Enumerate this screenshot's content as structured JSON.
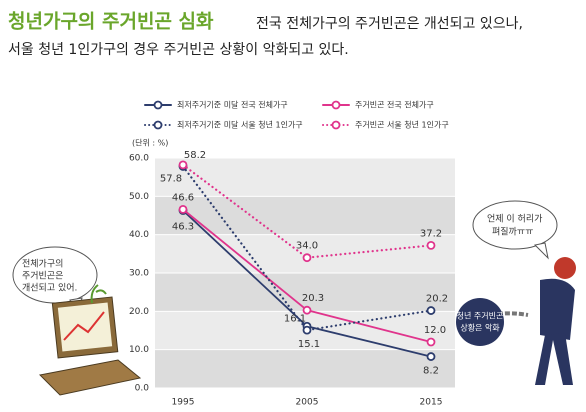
{
  "header": {
    "title": "청년가구의 주거빈곤 심화",
    "subtitle": [
      "전국 전체가구의 주거빈곤은 개선되고 있으나,",
      "서울 청년 1인가구의 경우 주거빈곤 상황이 악화되고 있다."
    ]
  },
  "chart_data": {
    "type": "line",
    "y_label": "(단위 : %)",
    "categories": [
      "1995",
      "2005",
      "2015"
    ],
    "series": [
      {
        "name": "최저주거기준 미달 전국 전체가구",
        "color": "#2d3d6d",
        "dashed": false,
        "values": [
          46.3,
          16.1,
          8.2
        ],
        "value_labels": [
          "46.3",
          "16.1",
          "8.2"
        ]
      },
      {
        "name": "주거빈곤 전국 전체가구",
        "color": "#e0348c",
        "dashed": false,
        "values": [
          46.6,
          20.3,
          12.0
        ],
        "value_labels": [
          "46.6",
          "20.3",
          "12.0"
        ]
      },
      {
        "name": "최저주거기준 미달 서울 청년 1인가구",
        "color": "#2d3d6d",
        "dashed": true,
        "values": [
          57.8,
          15.1,
          20.2
        ],
        "value_labels": [
          "57.8",
          "15.1",
          "20.2"
        ]
      },
      {
        "name": "주거빈곤 서울 청년 1인가구",
        "color": "#e0348c",
        "dashed": true,
        "values": [
          58.2,
          34.0,
          37.2
        ],
        "value_labels": [
          "58.2",
          "34.0",
          "37.2"
        ]
      }
    ],
    "ylim": [
      0,
      60
    ],
    "yticks": [
      {
        "value": 0,
        "label": "0.0"
      },
      {
        "value": 10,
        "label": "10.0"
      },
      {
        "value": 20,
        "label": "20.0"
      },
      {
        "value": 30,
        "label": "30.0"
      },
      {
        "value": 40,
        "label": "40.0"
      },
      {
        "value": 50,
        "label": "50.0"
      },
      {
        "value": 60,
        "label": "60.0"
      }
    ],
    "grid": true
  },
  "annotations": {
    "laptop_bubble": [
      "전체가구의",
      "주거빈곤은",
      "개선되고 있어."
    ],
    "person_bubble": [
      "언제 이 허리가",
      "펴질까ㅠㅠ"
    ],
    "badge": [
      "청년 주거빈곤",
      "상황은 악화"
    ]
  }
}
